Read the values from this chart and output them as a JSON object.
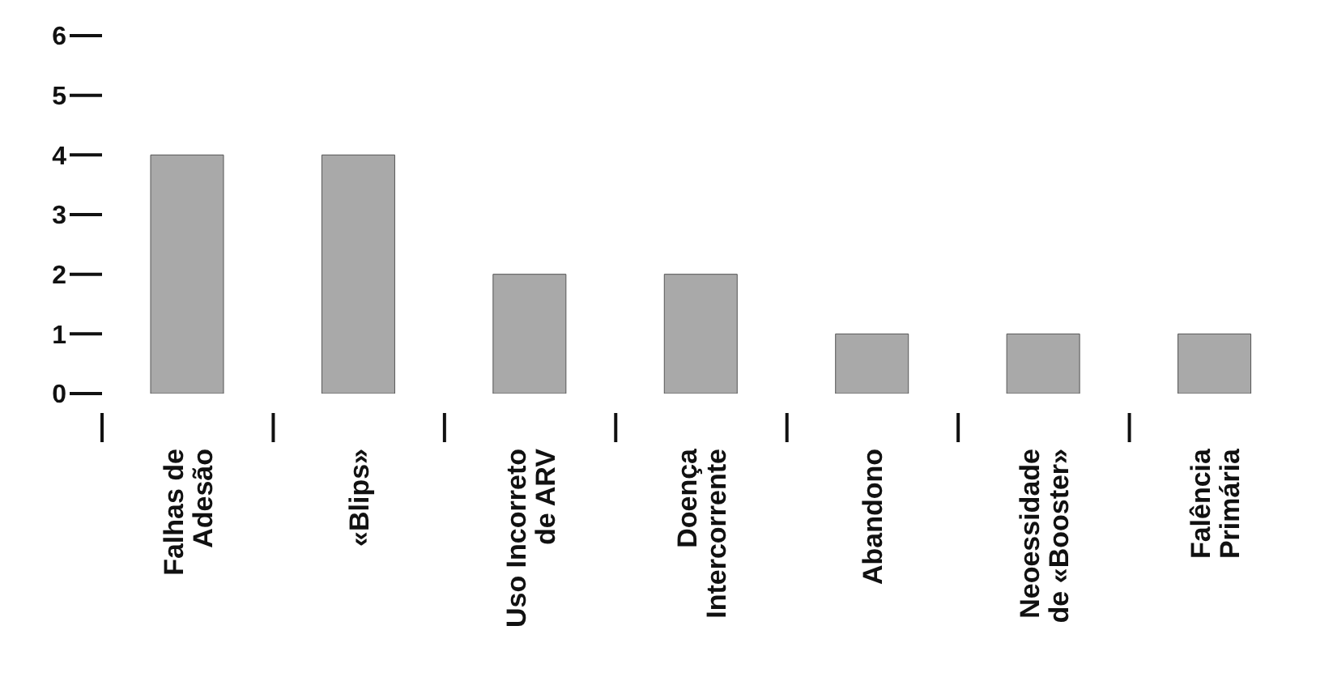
{
  "chart_data": {
    "type": "bar",
    "categories": [
      "Falhas de\nAdesão",
      "«Blips»",
      "Uso Incorreto\nde ARV",
      "Doença\nIntercorrente",
      "Abandono",
      "Neoessidade\nde «Booster»",
      "Falência\nPrimária"
    ],
    "values": [
      4,
      4,
      2,
      2,
      1,
      1,
      1
    ],
    "color": "#a9a9a9",
    "ylim": [
      0,
      6
    ],
    "yticks": [
      0,
      1,
      2,
      3,
      4,
      5,
      6
    ],
    "grid": false,
    "legend": false
  }
}
